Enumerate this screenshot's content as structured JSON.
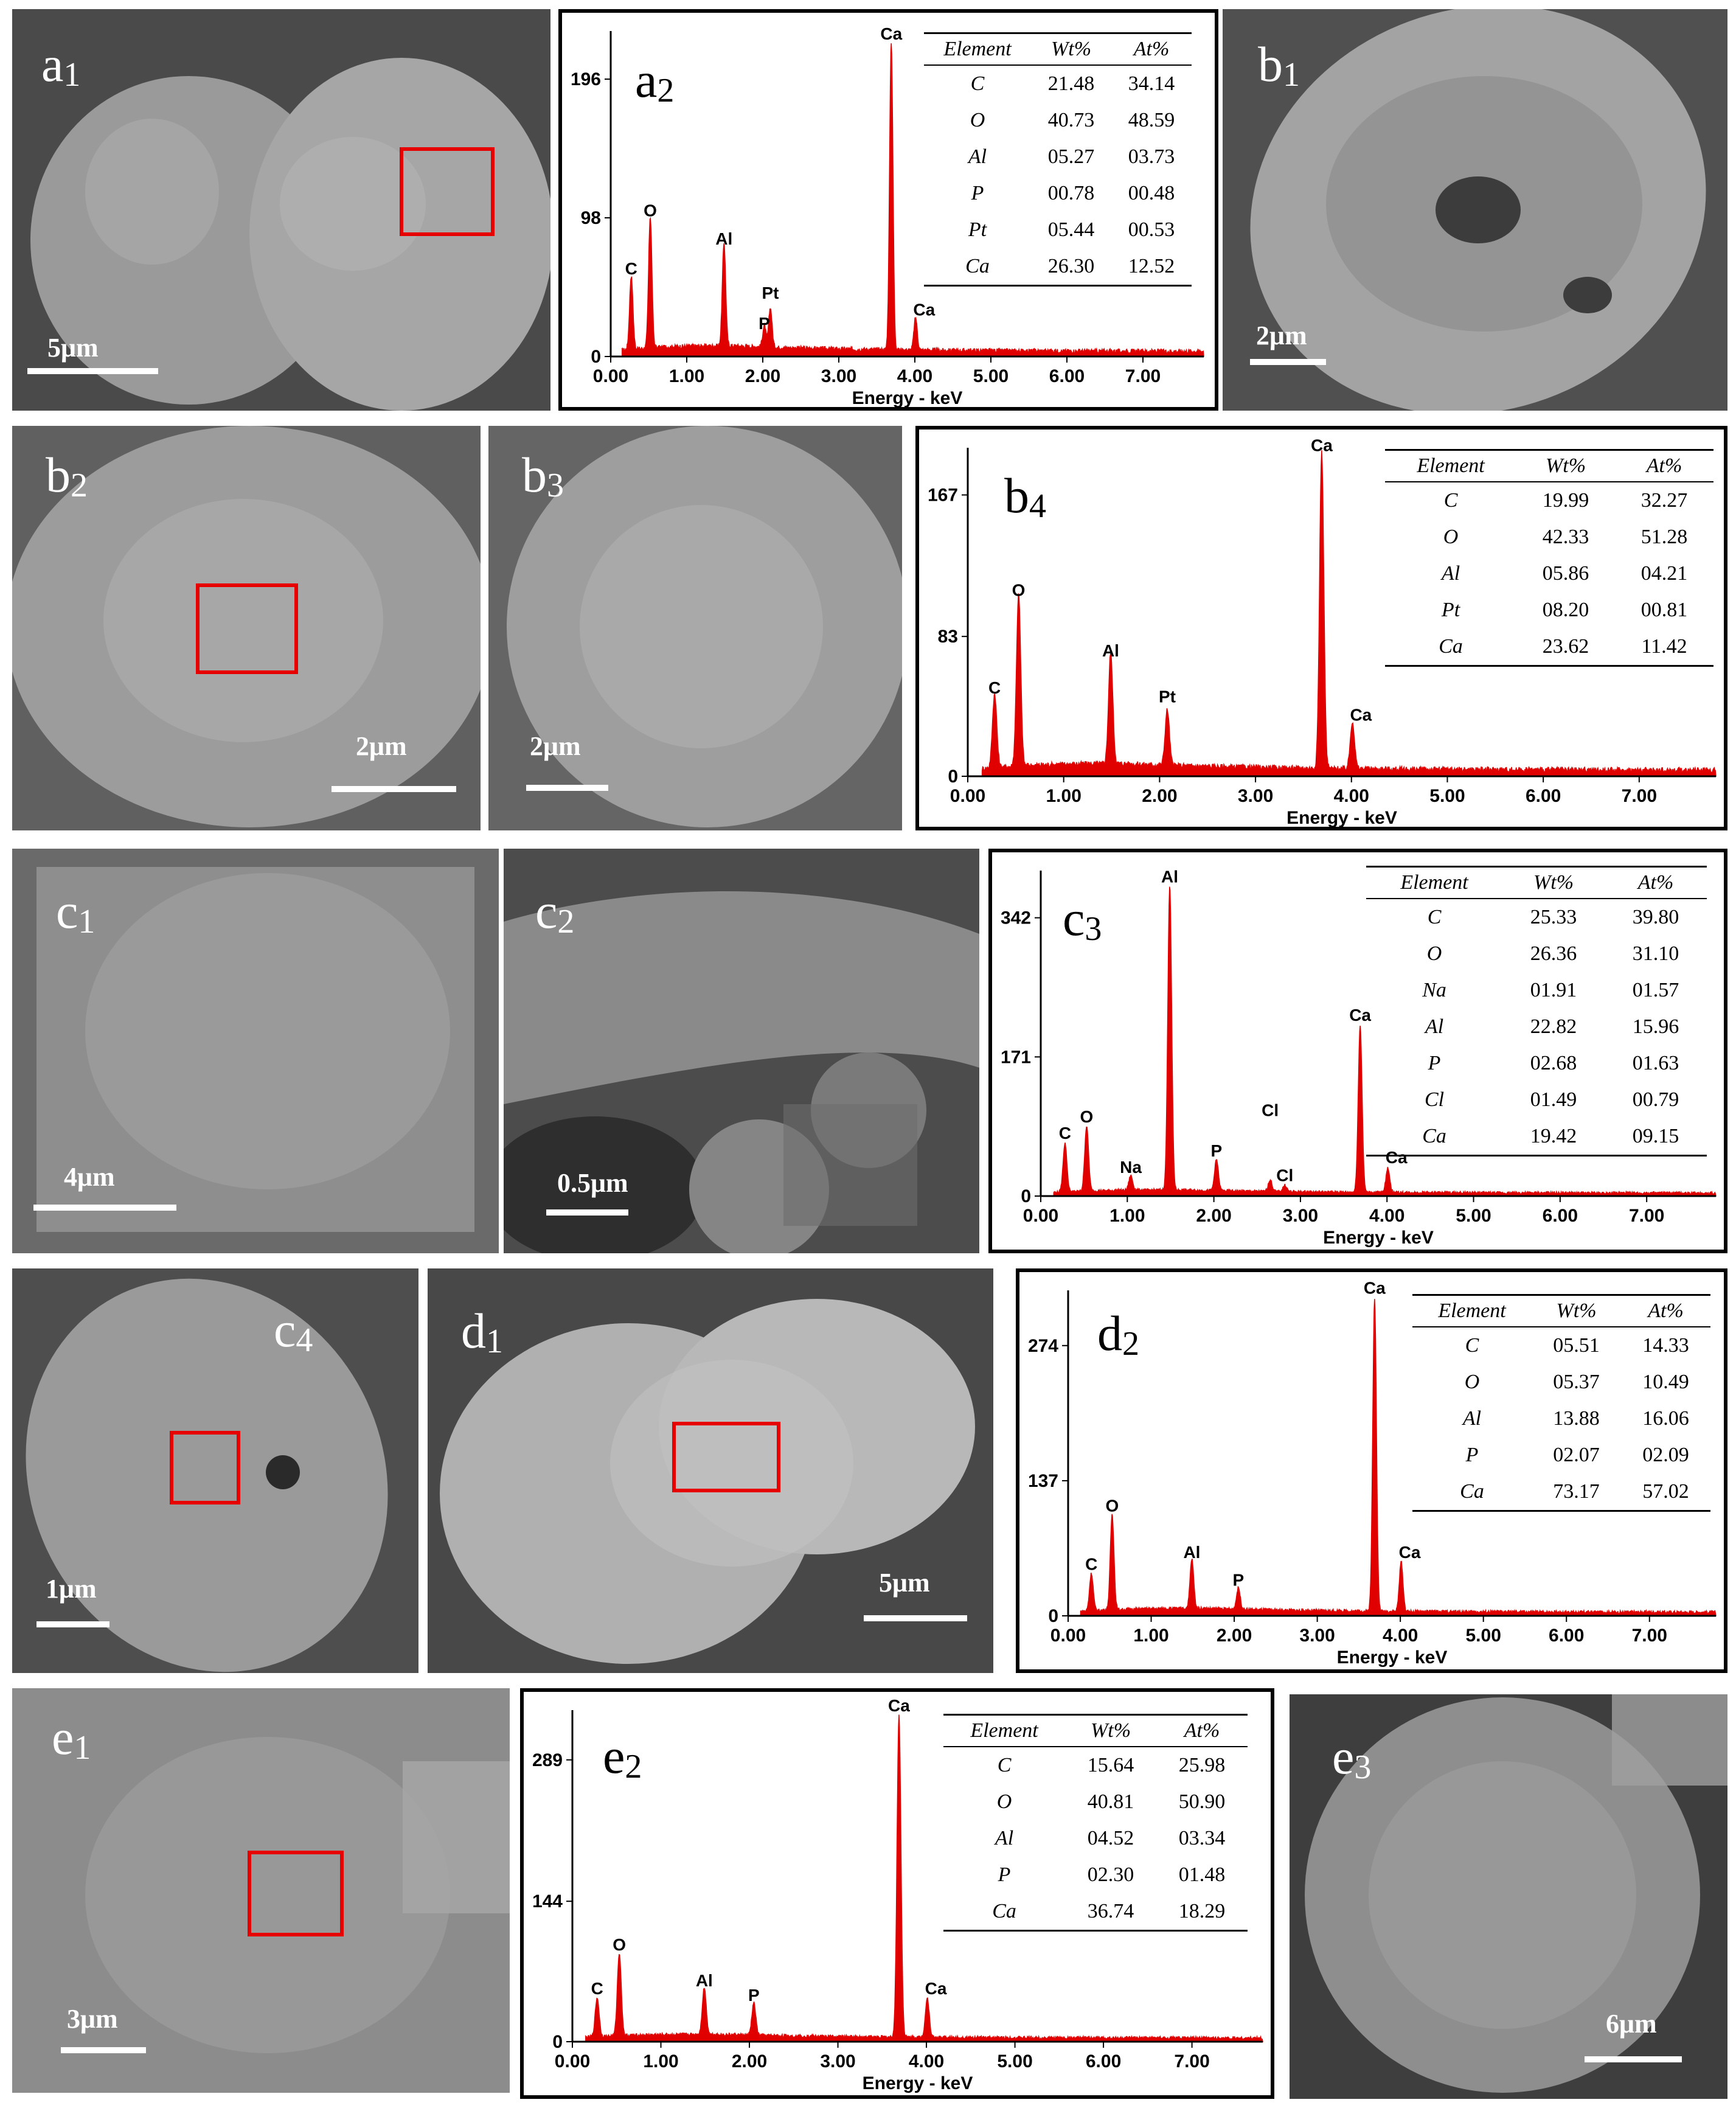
{
  "panels": {
    "a1": {
      "label": "a",
      "sub": "1",
      "scale": "5μm"
    },
    "a2": {
      "label": "a",
      "sub": "2"
    },
    "b1": {
      "label": "b",
      "sub": "1",
      "scale": "2μm"
    },
    "b2": {
      "label": "b",
      "sub": "2",
      "scale": "2μm"
    },
    "b3": {
      "label": "b",
      "sub": "3",
      "scale": "2μm"
    },
    "b4": {
      "label": "b",
      "sub": "4"
    },
    "c1": {
      "label": "c",
      "sub": "1",
      "scale": "4μm"
    },
    "c2": {
      "label": "c",
      "sub": "2",
      "scale": "0.5μm"
    },
    "c3": {
      "label": "c",
      "sub": "3"
    },
    "c4": {
      "label": "c",
      "sub": "4",
      "scale": "1μm"
    },
    "d1": {
      "label": "d",
      "sub": "1",
      "scale": "5μm"
    },
    "d2": {
      "label": "d",
      "sub": "2"
    },
    "e1": {
      "label": "e",
      "sub": "1",
      "scale": "3μm"
    },
    "e2": {
      "label": "e",
      "sub": "2"
    },
    "e3": {
      "label": "e",
      "sub": "3",
      "scale": "6μm"
    }
  },
  "table_headers": {
    "element": "Element",
    "wt": "Wt%",
    "at": "At%"
  },
  "colors": {
    "spectrum": "#e00000",
    "roi_box": "#e60000",
    "sem_bg": "#5d5d5d"
  },
  "chart_data": [
    {
      "id": "a2",
      "type": "area",
      "xlabel": "Energy - keV",
      "xticks": [
        "0.00",
        "1.00",
        "2.00",
        "3.00",
        "4.00",
        "5.00",
        "6.00",
        "7.00"
      ],
      "yticks": [
        "0",
        "98",
        "196"
      ],
      "xlim": [
        0,
        7.8
      ],
      "ylim": [
        0,
        230
      ],
      "peaks": [
        {
          "label": "C",
          "x": 0.27,
          "y": 52
        },
        {
          "label": "O",
          "x": 0.52,
          "y": 93
        },
        {
          "label": "Al",
          "x": 1.49,
          "y": 73
        },
        {
          "label": "P",
          "x": 2.02,
          "y": 15
        },
        {
          "label": "Pt",
          "x": 2.1,
          "y": 28
        },
        {
          "label": "Ca",
          "x": 3.69,
          "y": 218
        },
        {
          "label": "Ca",
          "x": 4.01,
          "y": 23
        }
      ],
      "table": [
        {
          "el": "C",
          "wt": "21.48",
          "at": "34.14"
        },
        {
          "el": "O",
          "wt": "40.73",
          "at": "48.59"
        },
        {
          "el": "Al",
          "wt": "05.27",
          "at": "03.73"
        },
        {
          "el": "P",
          "wt": "00.78",
          "at": "00.48"
        },
        {
          "el": "Pt",
          "wt": "05.44",
          "at": "00.53"
        },
        {
          "el": "Ca",
          "wt": "26.30",
          "at": "12.52"
        }
      ]
    },
    {
      "id": "b4",
      "type": "area",
      "xlabel": "Energy - keV",
      "xticks": [
        "0.00",
        "1.00",
        "2.00",
        "3.00",
        "4.00",
        "5.00",
        "6.00",
        "7.00"
      ],
      "yticks": [
        "0",
        "83",
        "167"
      ],
      "xlim": [
        0,
        7.8
      ],
      "ylim": [
        0,
        195
      ],
      "peaks": [
        {
          "label": "C",
          "x": 0.28,
          "y": 44
        },
        {
          "label": "O",
          "x": 0.53,
          "y": 102
        },
        {
          "label": "Al",
          "x": 1.49,
          "y": 66
        },
        {
          "label": "Pt",
          "x": 2.08,
          "y": 33
        },
        {
          "label": "Ca",
          "x": 3.69,
          "y": 188
        },
        {
          "label": "Ca",
          "x": 4.01,
          "y": 28
        }
      ],
      "table": [
        {
          "el": "C",
          "wt": "19.99",
          "at": "32.27"
        },
        {
          "el": "O",
          "wt": "42.33",
          "at": "51.28"
        },
        {
          "el": "Al",
          "wt": "05.86",
          "at": "04.21"
        },
        {
          "el": "Pt",
          "wt": "08.20",
          "at": "00.81"
        },
        {
          "el": "Ca",
          "wt": "23.62",
          "at": "11.42"
        }
      ]
    },
    {
      "id": "c3",
      "type": "area",
      "xlabel": "Energy - keV",
      "xticks": [
        "0.00",
        "1.00",
        "2.00",
        "3.00",
        "4.00",
        "5.00",
        "6.00",
        "7.00"
      ],
      "yticks": [
        "0",
        "171",
        "342"
      ],
      "xlim": [
        0,
        7.8
      ],
      "ylim": [
        0,
        400
      ],
      "peaks": [
        {
          "label": "C",
          "x": 0.28,
          "y": 60
        },
        {
          "label": "O",
          "x": 0.53,
          "y": 80
        },
        {
          "label": "Na",
          "x": 1.04,
          "y": 18
        },
        {
          "label": "Al",
          "x": 1.49,
          "y": 375
        },
        {
          "label": "P",
          "x": 2.03,
          "y": 38
        },
        {
          "label": "Cl",
          "x": 2.65,
          "y": 14
        },
        {
          "label": "Cl",
          "x": 2.82,
          "y": 8
        },
        {
          "label": "Ca",
          "x": 3.69,
          "y": 205
        },
        {
          "label": "Ca",
          "x": 4.01,
          "y": 30
        }
      ],
      "peak_labels": [
        {
          "label": "C",
          "x": 0.28,
          "y": 60
        },
        {
          "label": "O",
          "x": 0.53,
          "y": 80
        },
        {
          "label": "Na",
          "x": 1.04,
          "y": 18
        },
        {
          "label": "Al",
          "x": 1.49,
          "y": 375
        },
        {
          "label": "P",
          "x": 2.03,
          "y": 38
        },
        {
          "label": "Cl",
          "x": 2.65,
          "y": 88
        },
        {
          "label": "Cl",
          "x": 2.82,
          "y": 8
        },
        {
          "label": "Ca",
          "x": 3.69,
          "y": 205
        },
        {
          "label": "Ca",
          "x": 4.01,
          "y": 30
        }
      ],
      "table": [
        {
          "el": "C",
          "wt": "25.33",
          "at": "39.80"
        },
        {
          "el": "O",
          "wt": "26.36",
          "at": "31.10"
        },
        {
          "el": "Na",
          "wt": "01.91",
          "at": "01.57"
        },
        {
          "el": "Al",
          "wt": "22.82",
          "at": "15.96"
        },
        {
          "el": "P",
          "wt": "02.68",
          "at": "01.63"
        },
        {
          "el": "Cl",
          "wt": "01.49",
          "at": "00.79"
        },
        {
          "el": "Ca",
          "wt": "19.42",
          "at": "09.15"
        }
      ]
    },
    {
      "id": "d2",
      "type": "area",
      "xlabel": "Energy - keV",
      "xticks": [
        "0.00",
        "1.00",
        "2.00",
        "3.00",
        "4.00",
        "5.00",
        "6.00",
        "7.00"
      ],
      "yticks": [
        "0",
        "137",
        "274"
      ],
      "xlim": [
        0,
        7.8
      ],
      "ylim": [
        0,
        330
      ],
      "peaks": [
        {
          "label": "C",
          "x": 0.28,
          "y": 38
        },
        {
          "label": "O",
          "x": 0.53,
          "y": 97
        },
        {
          "label": "Al",
          "x": 1.49,
          "y": 50
        },
        {
          "label": "P",
          "x": 2.05,
          "y": 22
        },
        {
          "label": "Ca",
          "x": 3.69,
          "y": 318
        },
        {
          "label": "Ca",
          "x": 4.01,
          "y": 50
        }
      ],
      "table": [
        {
          "el": "C",
          "wt": "05.51",
          "at": "14.33"
        },
        {
          "el": "O",
          "wt": "05.37",
          "at": "10.49"
        },
        {
          "el": "Al",
          "wt": "13.88",
          "at": "16.06"
        },
        {
          "el": "P",
          "wt": "02.07",
          "at": "02.09"
        },
        {
          "el": "Ca",
          "wt": "73.17",
          "at": "57.02"
        }
      ]
    },
    {
      "id": "e2",
      "type": "area",
      "xlabel": "Energy - keV",
      "xticks": [
        "0.00",
        "1.00",
        "2.00",
        "3.00",
        "4.00",
        "5.00",
        "6.00",
        "7.00"
      ],
      "yticks": [
        "0",
        "144",
        "289"
      ],
      "xlim": [
        0,
        7.8
      ],
      "ylim": [
        0,
        340
      ],
      "peaks": [
        {
          "label": "C",
          "x": 0.28,
          "y": 40
        },
        {
          "label": "O",
          "x": 0.53,
          "y": 85
        },
        {
          "label": "Al",
          "x": 1.49,
          "y": 48
        },
        {
          "label": "P",
          "x": 2.05,
          "y": 33
        },
        {
          "label": "Ca",
          "x": 3.69,
          "y": 330
        },
        {
          "label": "Ca",
          "x": 4.01,
          "y": 40
        }
      ],
      "table": [
        {
          "el": "C",
          "wt": "15.64",
          "at": "25.98"
        },
        {
          "el": "O",
          "wt": "40.81",
          "at": "50.90"
        },
        {
          "el": "Al",
          "wt": "04.52",
          "at": "03.34"
        },
        {
          "el": "P",
          "wt": "02.30",
          "at": "01.48"
        },
        {
          "el": "Ca",
          "wt": "36.74",
          "at": "18.29"
        }
      ]
    }
  ]
}
